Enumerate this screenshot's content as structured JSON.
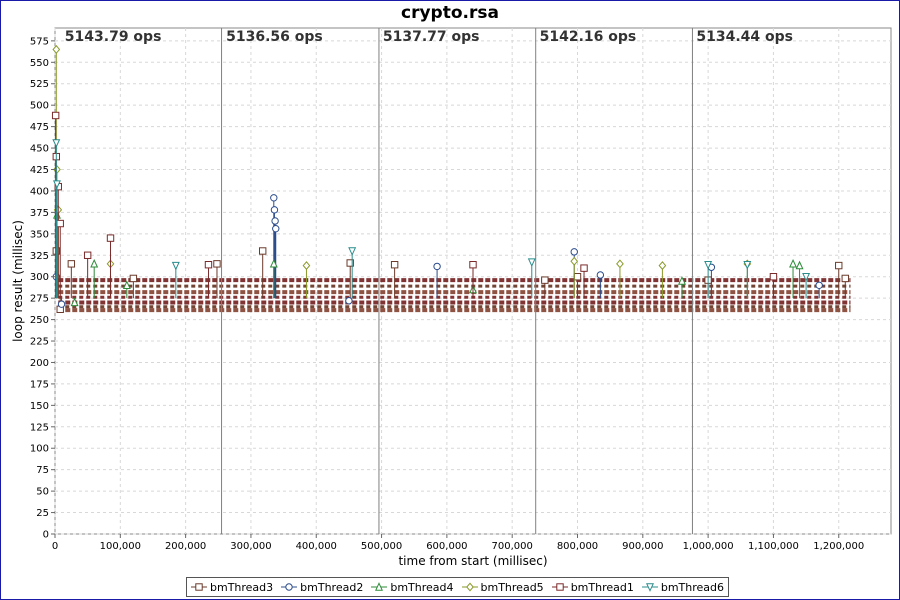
{
  "chart_data": {
    "type": "scatter",
    "title": "crypto.rsa",
    "xlabel": "time from start (millisec)",
    "ylabel": "loop result (millisec)",
    "xlim": [
      0,
      1280000
    ],
    "ylim": [
      0,
      590
    ],
    "x_ticks": [
      0,
      100000,
      200000,
      300000,
      400000,
      500000,
      600000,
      700000,
      800000,
      900000,
      1000000,
      1100000,
      1200000
    ],
    "x_tick_labels": [
      "0",
      "100,000",
      "200,000",
      "300,000",
      "400,000",
      "500,000",
      "600,000",
      "700,000",
      "800,000",
      "900,000",
      "1,000,000",
      "1,100,000",
      "1,200,000"
    ],
    "y_ticks": [
      0,
      25,
      50,
      75,
      100,
      125,
      150,
      175,
      200,
      225,
      250,
      275,
      300,
      325,
      350,
      375,
      400,
      425,
      450,
      475,
      500,
      525,
      550,
      575
    ],
    "grid": true,
    "legend_position": "bottom",
    "phase_boundaries": [
      255000,
      496000,
      736000,
      976000
    ],
    "annotations": [
      {
        "x": 15000,
        "text": "5143.79 ops"
      },
      {
        "x": 262000,
        "text": "5136.56 ops"
      },
      {
        "x": 502000,
        "text": "5137.77 ops"
      },
      {
        "x": 742000,
        "text": "5142.16 ops"
      },
      {
        "x": 982000,
        "text": "5134.44 ops"
      }
    ],
    "series": [
      {
        "name": "bmThread3",
        "marker": "square",
        "color": "#6b3a2a",
        "points": [
          [
            2000,
            330
          ],
          [
            8000,
            262
          ],
          [
            25000,
            315
          ],
          [
            120000,
            298
          ],
          [
            248000,
            315
          ],
          [
            318000,
            330
          ],
          [
            452000,
            316
          ],
          [
            520000,
            314
          ],
          [
            750000,
            296
          ],
          [
            800000,
            300
          ],
          [
            1000000,
            296
          ],
          [
            1200000,
            313
          ],
          [
            1210000,
            298
          ]
        ]
      },
      {
        "name": "bmThread2",
        "marker": "circle",
        "color": "#2b4c8c",
        "points": [
          [
            2000,
            300
          ],
          [
            10000,
            268
          ],
          [
            335000,
            392
          ],
          [
            336000,
            378
          ],
          [
            337000,
            365
          ],
          [
            338000,
            356
          ],
          [
            450000,
            272
          ],
          [
            585000,
            312
          ],
          [
            795000,
            329
          ],
          [
            835000,
            302
          ],
          [
            1005000,
            311
          ],
          [
            1170000,
            290
          ]
        ]
      },
      {
        "name": "bmThread4",
        "marker": "triangle-up",
        "color": "#2e8b3a",
        "points": [
          [
            3000,
            372
          ],
          [
            30000,
            270
          ],
          [
            60000,
            315
          ],
          [
            110000,
            290
          ],
          [
            335000,
            315
          ],
          [
            640000,
            285
          ],
          [
            960000,
            295
          ],
          [
            1130000,
            315
          ],
          [
            1140000,
            313
          ]
        ]
      },
      {
        "name": "bmThread5",
        "marker": "diamond",
        "color": "#8a9a28",
        "points": [
          [
            2000,
            565
          ],
          [
            3000,
            425
          ],
          [
            4000,
            378
          ],
          [
            5000,
            378
          ],
          [
            85000,
            315
          ],
          [
            385000,
            313
          ],
          [
            795000,
            318
          ],
          [
            865000,
            315
          ],
          [
            930000,
            313
          ],
          [
            1060000,
            315
          ]
        ]
      },
      {
        "name": "bmThread1",
        "marker": "square",
        "color": "#7a2a2a",
        "points": [
          [
            1000,
            488
          ],
          [
            2000,
            440
          ],
          [
            5000,
            405
          ],
          [
            8000,
            362
          ],
          [
            50000,
            325
          ],
          [
            85000,
            345
          ],
          [
            235000,
            314
          ],
          [
            640000,
            314
          ],
          [
            810000,
            310
          ],
          [
            1100000,
            300
          ]
        ]
      },
      {
        "name": "bmThread6",
        "marker": "triangle-down",
        "color": "#2a8c8c",
        "points": [
          [
            2000,
            456
          ],
          [
            3000,
            408
          ],
          [
            185000,
            313
          ],
          [
            455000,
            330
          ],
          [
            730000,
            317
          ],
          [
            1000000,
            314
          ],
          [
            1060000,
            314
          ],
          [
            1150000,
            300
          ]
        ]
      }
    ]
  }
}
